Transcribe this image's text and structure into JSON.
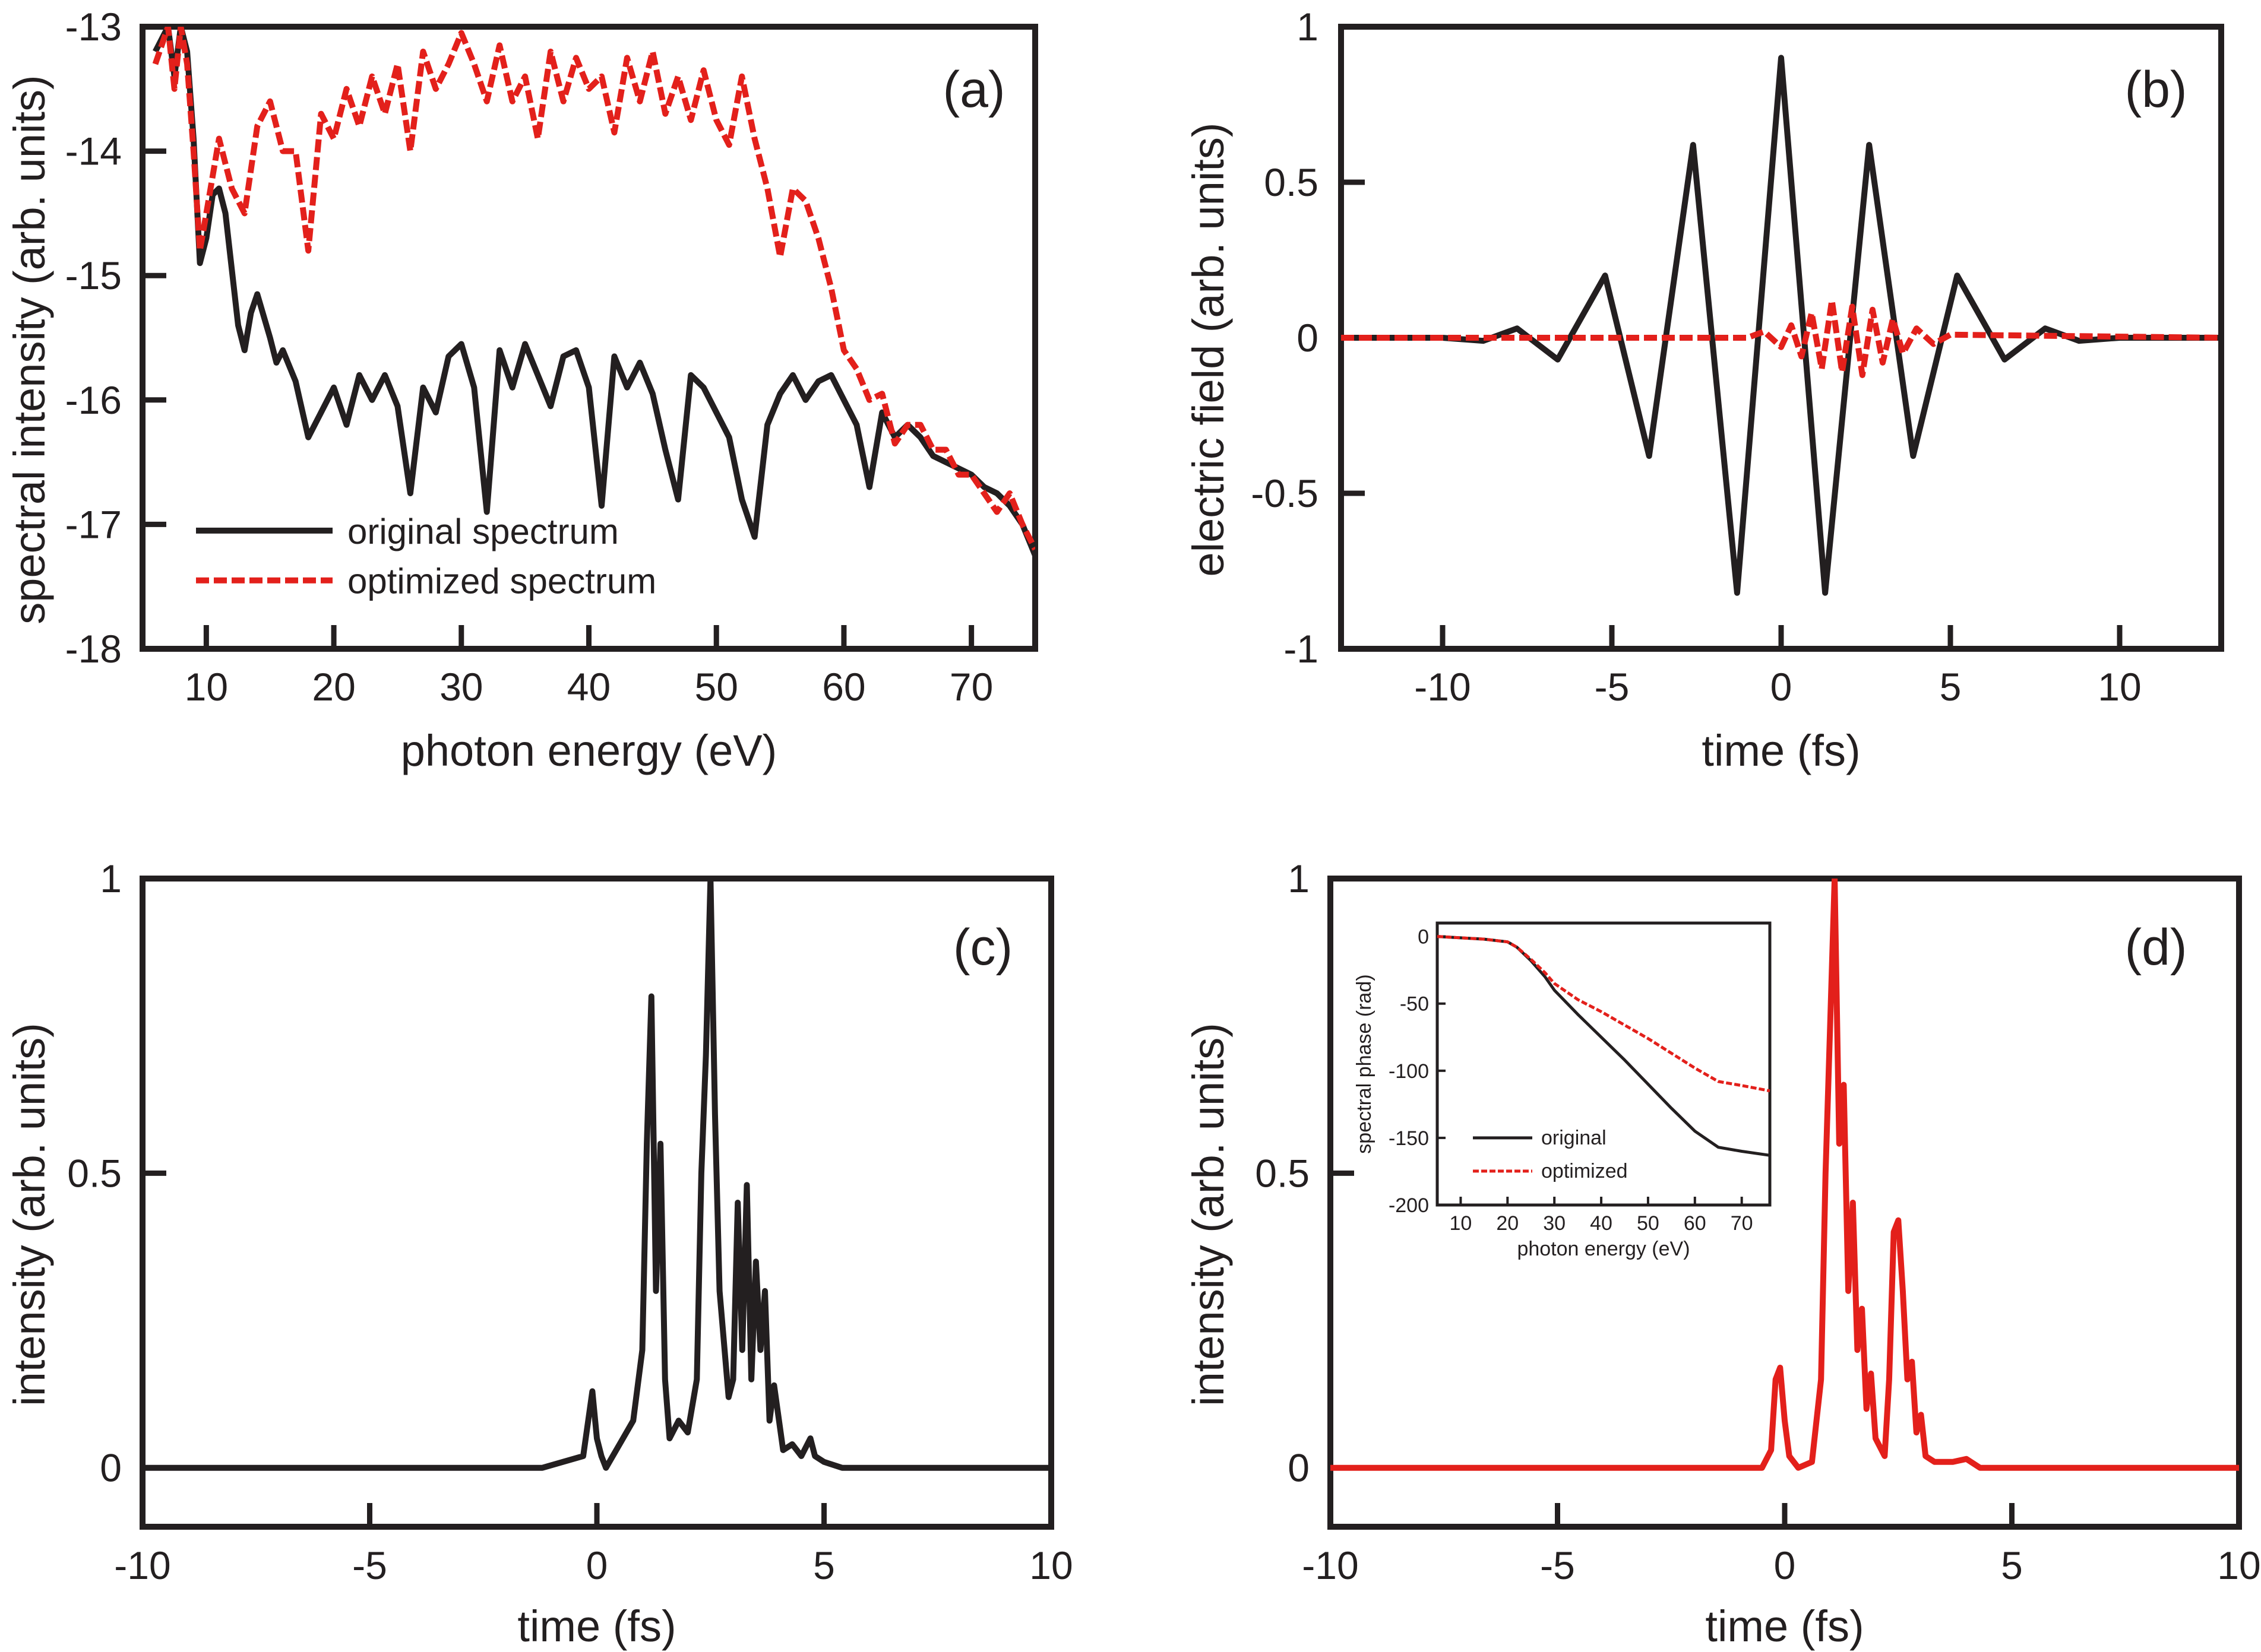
{
  "colors": {
    "original": "#231f20",
    "optimized": "#e3201b",
    "frame": "#231f20"
  },
  "chart_data": [
    {
      "id": "a",
      "type": "line",
      "panel_label": "(a)",
      "xlabel": "photon energy (eV)",
      "ylabel": "spectral intensity (arb. units)",
      "xlim": [
        5,
        75
      ],
      "ylim": [
        -18,
        -13
      ],
      "xticks": [
        10,
        20,
        30,
        40,
        50,
        60,
        70
      ],
      "yticks": [
        -13,
        -14,
        -15,
        -16,
        -17,
        -18
      ],
      "legend": {
        "position": "bottom-left",
        "entries": [
          "original spectrum",
          "optimized spectrum"
        ]
      },
      "series": [
        {
          "name": "original spectrum",
          "style": "solid",
          "x": [
            6,
            7,
            7.5,
            8,
            8.5,
            9,
            9.5,
            10,
            10.5,
            11,
            11.5,
            12,
            12.5,
            13,
            13.5,
            14,
            15,
            15.5,
            16,
            17,
            18,
            19,
            20,
            21,
            22,
            23,
            24,
            25,
            26,
            27,
            28,
            29,
            30,
            31,
            32,
            33,
            34,
            35,
            36,
            37,
            38,
            39,
            40,
            41,
            42,
            43,
            44,
            45,
            46,
            47,
            48,
            49,
            50,
            51,
            52,
            53,
            54,
            55,
            56,
            57,
            58,
            59,
            60,
            61,
            62,
            63,
            64,
            65,
            66,
            67,
            68,
            69,
            70,
            71,
            72,
            73,
            74,
            75
          ],
          "y": [
            -13.2,
            -13,
            -13.4,
            -13,
            -13.2,
            -13.9,
            -14.9,
            -14.7,
            -14.35,
            -14.3,
            -14.5,
            -14.95,
            -15.4,
            -15.6,
            -15.3,
            -15.15,
            -15.5,
            -15.7,
            -15.6,
            -15.85,
            -16.3,
            -16.1,
            -15.9,
            -16.2,
            -15.8,
            -16,
            -15.8,
            -16.05,
            -16.75,
            -15.9,
            -16.1,
            -15.65,
            -15.55,
            -15.9,
            -16.9,
            -15.6,
            -15.9,
            -15.55,
            -15.8,
            -16.05,
            -15.65,
            -15.6,
            -15.9,
            -16.85,
            -15.65,
            -15.9,
            -15.7,
            -15.95,
            -16.4,
            -16.8,
            -15.8,
            -15.9,
            -16.1,
            -16.3,
            -16.8,
            -17.1,
            -16.2,
            -15.95,
            -15.8,
            -16,
            -15.85,
            -15.8,
            -16,
            -16.2,
            -16.7,
            -16.1,
            -16.3,
            -16.2,
            -16.3,
            -16.45,
            -16.5,
            -16.55,
            -16.6,
            -16.7,
            -16.75,
            -16.85,
            -17,
            -17.25
          ]
        },
        {
          "name": "optimized spectrum",
          "style": "dashed",
          "x": [
            6,
            7,
            7.5,
            8,
            8.5,
            9,
            9.5,
            10,
            11,
            12,
            13,
            14,
            15,
            16,
            17,
            17.5,
            18,
            19,
            20,
            21,
            22,
            23,
            24,
            25,
            26,
            27,
            28,
            29,
            30,
            31,
            32,
            33,
            34,
            35,
            36,
            37,
            38,
            39,
            40,
            41,
            42,
            43,
            44,
            45,
            46,
            47,
            48,
            49,
            50,
            51,
            52,
            53,
            54,
            55,
            56,
            57,
            58,
            59,
            60,
            61,
            62,
            63,
            64,
            65,
            66,
            67,
            68,
            69,
            70,
            71,
            72,
            73,
            74,
            75
          ],
          "y": [
            -13.3,
            -13,
            -13.5,
            -13,
            -13.3,
            -14,
            -14.8,
            -14.5,
            -13.9,
            -14.3,
            -14.5,
            -13.8,
            -13.6,
            -14,
            -14,
            -14.4,
            -14.8,
            -13.7,
            -13.9,
            -13.5,
            -13.8,
            -13.4,
            -13.7,
            -13.3,
            -14,
            -13.2,
            -13.5,
            -13.3,
            -13.05,
            -13.3,
            -13.6,
            -13.15,
            -13.6,
            -13.4,
            -13.9,
            -13.2,
            -13.6,
            -13.25,
            -13.5,
            -13.4,
            -13.85,
            -13.25,
            -13.6,
            -13.2,
            -13.7,
            -13.4,
            -13.75,
            -13.35,
            -13.75,
            -13.95,
            -13.4,
            -13.9,
            -14.3,
            -14.85,
            -14.3,
            -14.4,
            -14.7,
            -15.1,
            -15.6,
            -15.75,
            -16.0,
            -15.95,
            -16.35,
            -16.2,
            -16.2,
            -16.4,
            -16.4,
            -16.6,
            -16.6,
            -16.75,
            -16.9,
            -16.75,
            -17.0,
            -17.2
          ]
        }
      ]
    },
    {
      "id": "b",
      "type": "line",
      "panel_label": "(b)",
      "xlabel": "time (fs)",
      "ylabel": "electric field (arb. units)",
      "xlim": [
        -13,
        13
      ],
      "ylim": [
        -1,
        1
      ],
      "xticks": [
        -10,
        -5,
        0,
        5,
        10
      ],
      "yticks": [
        1,
        0.5,
        0,
        -0.5,
        -1
      ],
      "series": [
        {
          "name": "original",
          "style": "solid",
          "x": [
            -13,
            -10,
            -8.8,
            -7.8,
            -6.6,
            -5.2,
            -3.9,
            -2.6,
            -1.3,
            0,
            1.3,
            2.6,
            3.9,
            5.2,
            6.6,
            7.8,
            8.8,
            10,
            13
          ],
          "y": [
            0,
            0,
            -0.01,
            0.03,
            -0.07,
            0.2,
            -0.38,
            0.62,
            -0.82,
            0.9,
            -0.82,
            0.62,
            -0.38,
            0.2,
            -0.07,
            0.03,
            -0.01,
            0,
            0
          ]
        },
        {
          "name": "optimized",
          "style": "dashed",
          "x": [
            -13,
            -1,
            -0.5,
            0,
            0.3,
            0.6,
            0.9,
            1.2,
            1.5,
            1.8,
            2.1,
            2.4,
            2.7,
            3.0,
            3.3,
            3.6,
            4.0,
            4.5,
            5,
            13
          ],
          "y": [
            0,
            0,
            0.02,
            -0.03,
            0.04,
            -0.06,
            0.08,
            -0.1,
            0.12,
            -0.11,
            0.1,
            -0.12,
            0.09,
            -0.08,
            0.06,
            -0.05,
            0.03,
            -0.02,
            0.01,
            0
          ]
        }
      ]
    },
    {
      "id": "c",
      "type": "line",
      "panel_label": "(c)",
      "xlabel": "time (fs)",
      "ylabel": "intensity (arb. units)",
      "xlim": [
        -10,
        10
      ],
      "ylim": [
        -0.1,
        1
      ],
      "xticks": [
        -10,
        -5,
        0,
        5,
        10
      ],
      "yticks": [
        1,
        0.5,
        0
      ],
      "series": [
        {
          "name": "original",
          "style": "solid",
          "x": [
            -10,
            -1.2,
            -0.3,
            -0.1,
            0,
            0.1,
            0.2,
            0.5,
            0.8,
            1.0,
            1.1,
            1.2,
            1.3,
            1.4,
            1.5,
            1.6,
            1.8,
            2.0,
            2.2,
            2.3,
            2.4,
            2.5,
            2.6,
            2.7,
            2.9,
            3.0,
            3.1,
            3.2,
            3.3,
            3.4,
            3.5,
            3.6,
            3.7,
            3.8,
            3.9,
            4.1,
            4.3,
            4.5,
            4.7,
            4.8,
            5.0,
            5.4,
            10
          ],
          "y": [
            0,
            0,
            0.02,
            0.13,
            0.05,
            0.02,
            0,
            0.04,
            0.08,
            0.2,
            0.55,
            0.8,
            0.3,
            0.55,
            0.15,
            0.05,
            0.08,
            0.06,
            0.15,
            0.5,
            0.7,
            1.0,
            0.6,
            0.3,
            0.12,
            0.15,
            0.45,
            0.2,
            0.48,
            0.15,
            0.35,
            0.2,
            0.3,
            0.08,
            0.14,
            0.03,
            0.04,
            0.02,
            0.05,
            0.02,
            0.01,
            0,
            0
          ]
        }
      ]
    },
    {
      "id": "d",
      "type": "line",
      "panel_label": "(d)",
      "xlabel": "time (fs)",
      "ylabel": "intensity (arb. units)",
      "xlim": [
        -10,
        10
      ],
      "ylim": [
        -0.1,
        1
      ],
      "xticks": [
        -10,
        -5,
        0,
        5,
        10
      ],
      "yticks": [
        1,
        0.5,
        0
      ],
      "series": [
        {
          "name": "optimized",
          "style": "solid",
          "x": [
            -10,
            -0.5,
            -0.3,
            -0.2,
            -0.1,
            0,
            0.1,
            0.3,
            0.6,
            0.8,
            0.9,
            1.0,
            1.1,
            1.2,
            1.3,
            1.4,
            1.5,
            1.6,
            1.7,
            1.8,
            1.9,
            2.0,
            2.2,
            2.3,
            2.4,
            2.5,
            2.6,
            2.7,
            2.8,
            2.9,
            3.0,
            3.1,
            3.3,
            3.7,
            4.0,
            4.3,
            10
          ],
          "y": [
            0,
            0,
            0.03,
            0.15,
            0.17,
            0.08,
            0.02,
            0,
            0.01,
            0.15,
            0.5,
            0.75,
            1.0,
            0.55,
            0.65,
            0.3,
            0.45,
            0.2,
            0.27,
            0.1,
            0.16,
            0.05,
            0.02,
            0.15,
            0.4,
            0.42,
            0.3,
            0.15,
            0.18,
            0.06,
            0.09,
            0.02,
            0.01,
            0.01,
            0.015,
            0,
            0
          ]
        }
      ],
      "inset": {
        "type": "line",
        "xlabel": "photon energy (eV)",
        "ylabel": "spectral phase (rad)",
        "xlim": [
          5,
          76
        ],
        "ylim": [
          -200,
          10
        ],
        "xticks": [
          10,
          20,
          30,
          40,
          50,
          60,
          70
        ],
        "yticks": [
          0,
          -50,
          -100,
          -150,
          -200
        ],
        "legend": {
          "position": "bottom-left",
          "entries": [
            "original",
            "optimized"
          ]
        },
        "series": [
          {
            "name": "original",
            "style": "solid",
            "x": [
              5,
              10,
              15,
              20,
              22,
              25,
              28,
              30,
              35,
              40,
              45,
              50,
              55,
              60,
              65,
              70,
              76
            ],
            "y": [
              0,
              -1,
              -2,
              -4,
              -8,
              -18,
              -30,
              -40,
              -58,
              -75,
              -92,
              -110,
              -128,
              -145,
              -157,
              -160,
              -163
            ]
          },
          {
            "name": "optimized",
            "style": "dashed",
            "x": [
              5,
              10,
              15,
              20,
              22,
              25,
              28,
              30,
              35,
              40,
              45,
              50,
              55,
              60,
              65,
              70,
              76
            ],
            "y": [
              0,
              -1,
              -2,
              -4,
              -8,
              -17,
              -27,
              -35,
              -47,
              -56,
              -66,
              -76,
              -87,
              -98,
              -108,
              -111,
              -115
            ]
          }
        ]
      }
    }
  ]
}
